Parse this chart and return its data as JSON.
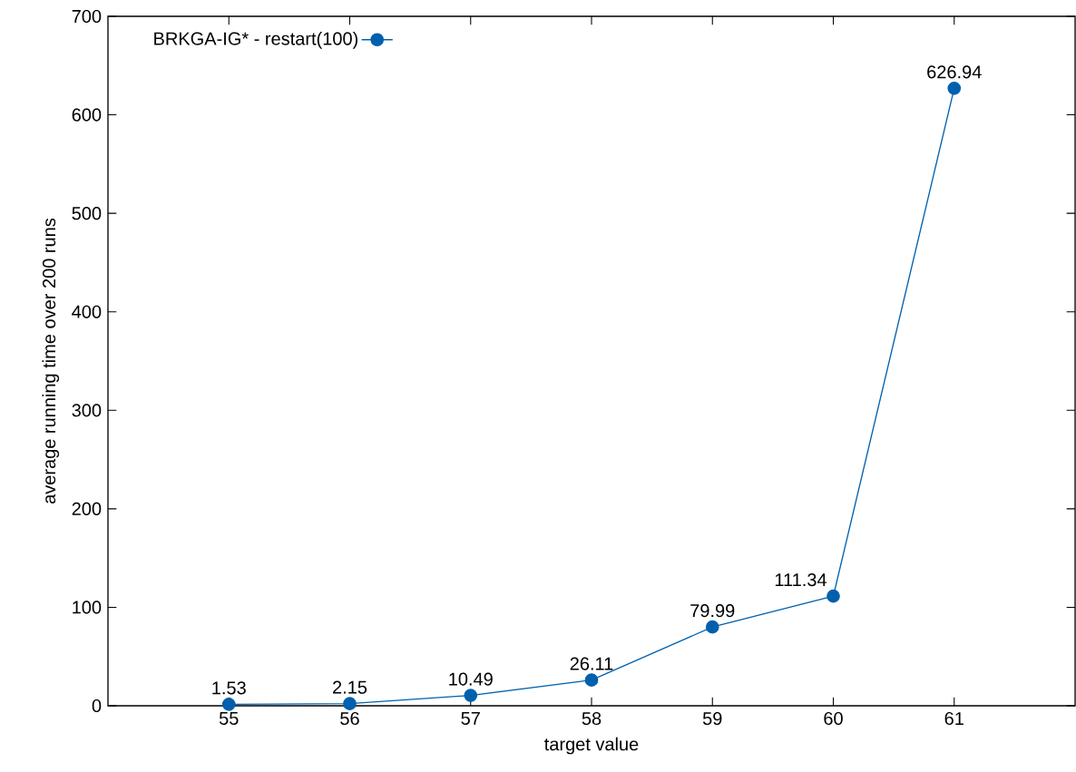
{
  "chart_data": {
    "type": "line",
    "xlabel": "target value",
    "ylabel": "average running time over 200 runs",
    "x": [
      55,
      56,
      57,
      58,
      59,
      60,
      61
    ],
    "series": [
      {
        "name": "BRKGA-IG* - restart(100)",
        "color": "#0060ad",
        "values": [
          1.53,
          2.15,
          10.49,
          26.11,
          79.99,
          111.34,
          626.94
        ]
      }
    ],
    "xlim": [
      54,
      62
    ],
    "ylim": [
      0,
      700
    ],
    "xticks": [
      55,
      56,
      57,
      58,
      59,
      60,
      61
    ],
    "yticks": [
      0,
      100,
      200,
      300,
      400,
      500,
      600,
      700
    ],
    "data_labels": true,
    "legend": "top left",
    "marker": "circle",
    "line_style": "solid",
    "grid": false
  }
}
